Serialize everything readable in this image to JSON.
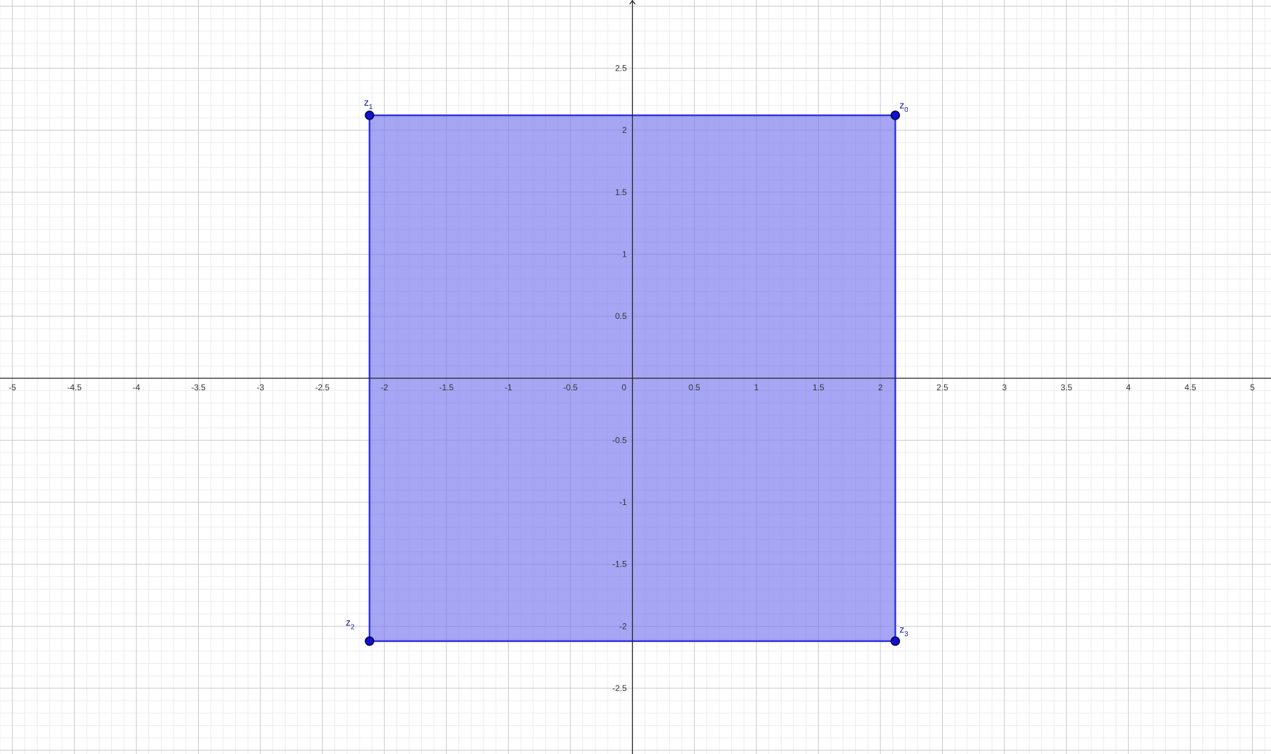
{
  "chart_data": {
    "type": "scatter",
    "xlim": [
      -5.1,
      5.15
    ],
    "ylim": [
      -3.03,
      3.05
    ],
    "grid": true,
    "minor_grid": true,
    "x_ticks": [
      -5,
      -4.5,
      -4,
      -3.5,
      -3,
      -2.5,
      -2,
      -1.5,
      -1,
      -0.5,
      0,
      0.5,
      1,
      1.5,
      2,
      2.5,
      3,
      3.5,
      4,
      4.5,
      5
    ],
    "x_tick_labels": [
      "-5",
      "-4.5",
      "-4",
      "-3.5",
      "-3",
      "-2.5",
      "-2",
      "-1.5",
      "-1",
      "-0.5",
      "0",
      "0.5",
      "1",
      "1.5",
      "2",
      "2.5",
      "3",
      "3.5",
      "4",
      "4.5",
      "5"
    ],
    "y_ticks": [
      2.5,
      2,
      1.5,
      1,
      0.5,
      -0.5,
      -1,
      -1.5,
      -2,
      -2.5
    ],
    "y_tick_labels": [
      "2.5",
      "2",
      "1.5",
      "1",
      "0.5",
      "-0.5",
      "-1",
      "-1.5",
      "-2",
      "-2.5"
    ],
    "points": [
      {
        "name": "z",
        "sub": "0",
        "x": 2.12,
        "y": 2.12
      },
      {
        "name": "z",
        "sub": "1",
        "x": -2.12,
        "y": 2.12
      },
      {
        "name": "z",
        "sub": "2",
        "x": -2.12,
        "y": -2.12
      },
      {
        "name": "z",
        "sub": "3",
        "x": 2.12,
        "y": -2.12
      }
    ],
    "polygon": {
      "vertices": [
        "z0",
        "z1",
        "z2",
        "z3"
      ]
    },
    "colors": {
      "polygon_fill": "#7777ee",
      "polygon_stroke": "#3333dd",
      "point_fill": "#1111cc",
      "point_stroke": "#000055",
      "point_label": "#1a1a99",
      "axis": "#222222",
      "major_grid": "#c8c8c8",
      "minor_grid": "#ececec"
    }
  }
}
